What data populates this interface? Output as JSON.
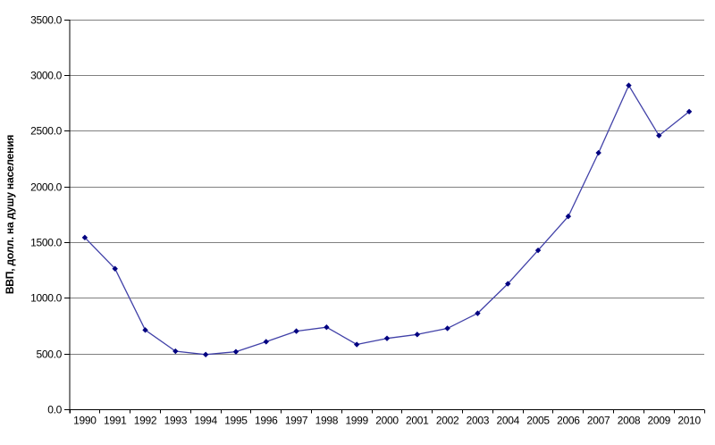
{
  "chart_data": {
    "type": "line",
    "title": "",
    "xlabel": "",
    "ylabel": "ВВП, долл. на душу населения",
    "categories": [
      "1990",
      "1991",
      "1992",
      "1993",
      "1994",
      "1995",
      "1996",
      "1997",
      "1998",
      "1999",
      "2000",
      "2001",
      "2002",
      "2003",
      "2004",
      "2005",
      "2006",
      "2007",
      "2008",
      "2009",
      "2010"
    ],
    "values": [
      1545,
      1265,
      715,
      525,
      495,
      520,
      610,
      705,
      740,
      585,
      640,
      675,
      730,
      865,
      1130,
      1430,
      1735,
      2305,
      2910,
      2460,
      2675
    ],
    "ylim": [
      0,
      3500
    ],
    "ytick_step": 500,
    "ytick_labels": [
      "0.0",
      "500.0",
      "1000.0",
      "1500.0",
      "2000.0",
      "2500.0",
      "3000.0",
      "3500.0"
    ],
    "grid": "horizontal",
    "legend": "none",
    "marker": "diamond",
    "colors": {
      "line": "#4141A8",
      "marker": "#000080",
      "gridline": "#808080",
      "axis": "#000000",
      "text": "#000000",
      "background": "#FFFFFF"
    }
  }
}
